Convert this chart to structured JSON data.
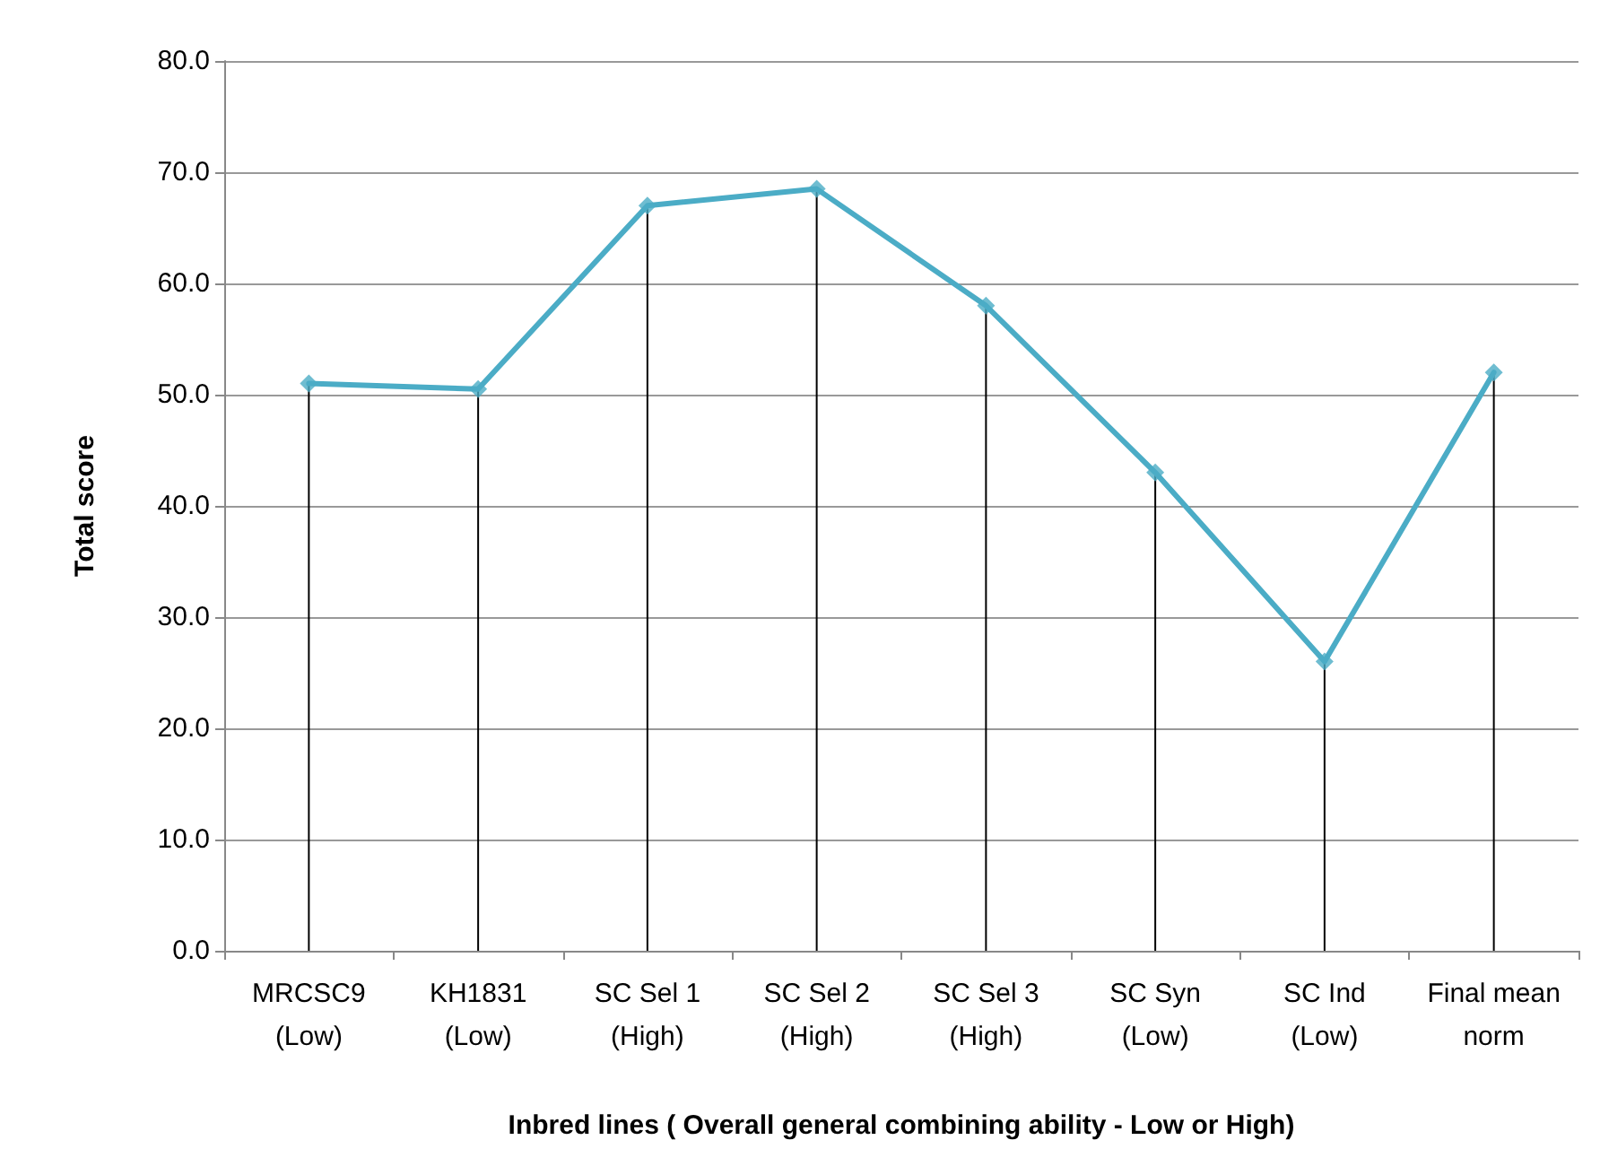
{
  "chart_data": {
    "type": "line",
    "xlabel": "Inbred lines ( Overall general combining ability - Low or High)",
    "ylabel": "Total score",
    "categories": [
      "MRCSC9\n(Low)",
      "KH1831\n(Low)",
      "SC Sel 1\n(High)",
      "SC Sel 2\n(High)",
      "SC Sel 3\n(High)",
      "SC Syn\n(Low)",
      "SC Ind\n(Low)",
      "Final mean\nnorm"
    ],
    "series": [
      {
        "color": "#4bacc6",
        "marker": "none",
        "values": [
          51.0,
          50.5,
          67.0,
          68.5,
          58.0,
          43.0,
          26.0,
          52.0
        ]
      },
      {
        "type": "lollipop",
        "color": "#4bacc6",
        "marker": "diamond",
        "values": [
          51.0,
          50.5,
          67.0,
          68.5,
          58.0,
          43.0,
          26.0,
          52.0
        ]
      }
    ],
    "ylim": [
      0,
      80
    ],
    "yticks": [
      {
        "value": 0,
        "label": "0.0"
      },
      {
        "value": 10,
        "label": "10.0"
      },
      {
        "value": 20,
        "label": "20.0"
      },
      {
        "value": 30,
        "label": "30.0"
      },
      {
        "value": 40,
        "label": "40.0"
      },
      {
        "value": 50,
        "label": "50.0"
      },
      {
        "value": 60,
        "label": "60.0"
      },
      {
        "value": 70,
        "label": "70.0"
      },
      {
        "value": 80,
        "label": "80.0"
      }
    ],
    "grid": "y",
    "line_style": "solid"
  }
}
